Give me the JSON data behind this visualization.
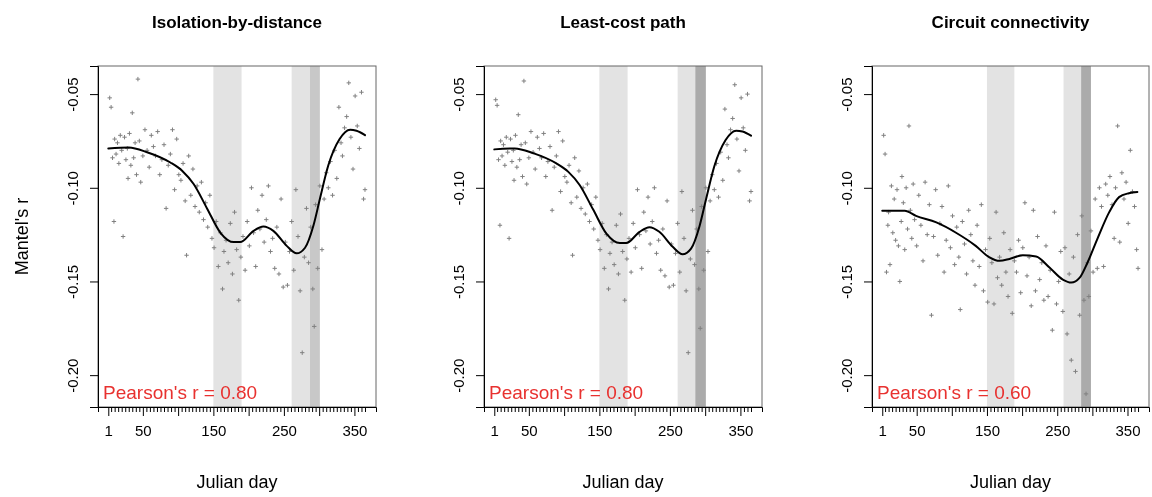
{
  "chart_data": [
    {
      "type": "scatter",
      "title": "Isolation-by-distance",
      "xlabel": "Julian day",
      "ylabel": "Mantel's r",
      "marker": "cross",
      "annotations": [
        "Pearson's r = 0.80"
      ],
      "xlim": [
        -13.6,
        380.6
      ],
      "ylim": [
        -0.217,
        -0.035
      ],
      "xticks": [
        1,
        {
          "value": 5,
          "label": null
        },
        {
          "value": 10,
          "label": null
        },
        {
          "value": 15,
          "label": null
        },
        {
          "value": 20,
          "label": null
        },
        {
          "value": 25,
          "label": null
        },
        {
          "value": 30,
          "label": null
        },
        {
          "value": 35,
          "label": null
        },
        {
          "value": 40,
          "label": null
        },
        {
          "value": 45,
          "label": null
        },
        50,
        {
          "value": 55,
          "label": null
        },
        {
          "value": 60,
          "label": null
        },
        {
          "value": 65,
          "label": null
        },
        {
          "value": 70,
          "label": null
        },
        {
          "value": 75,
          "label": null
        },
        {
          "value": 80,
          "label": null
        },
        {
          "value": 85,
          "label": null
        },
        {
          "value": 90,
          "label": null
        },
        {
          "value": 95,
          "label": null
        },
        {
          "value": 100,
          "label": null
        },
        {
          "value": 105,
          "label": null
        },
        {
          "value": 110,
          "label": null
        },
        {
          "value": 115,
          "label": null
        },
        {
          "value": 120,
          "label": null
        },
        {
          "value": 125,
          "label": null
        },
        {
          "value": 130,
          "label": null
        },
        {
          "value": 135,
          "label": null
        },
        {
          "value": 140,
          "label": null
        },
        {
          "value": 145,
          "label": null
        },
        150,
        {
          "value": 155,
          "label": null
        },
        {
          "value": 160,
          "label": null
        },
        {
          "value": 165,
          "label": null
        },
        {
          "value": 170,
          "label": null
        },
        {
          "value": 175,
          "label": null
        },
        {
          "value": 180,
          "label": null
        },
        {
          "value": 185,
          "label": null
        },
        {
          "value": 190,
          "label": null
        },
        {
          "value": 195,
          "label": null
        },
        {
          "value": 200,
          "label": null
        },
        {
          "value": 205,
          "label": null
        },
        {
          "value": 210,
          "label": null
        },
        {
          "value": 215,
          "label": null
        },
        {
          "value": 220,
          "label": null
        },
        {
          "value": 225,
          "label": null
        },
        {
          "value": 230,
          "label": null
        },
        {
          "value": 235,
          "label": null
        },
        {
          "value": 240,
          "label": null
        },
        {
          "value": 245,
          "label": null
        },
        250,
        {
          "value": 255,
          "label": null
        },
        {
          "value": 260,
          "label": null
        },
        {
          "value": 265,
          "label": null
        },
        {
          "value": 270,
          "label": null
        },
        {
          "value": 275,
          "label": null
        },
        {
          "value": 280,
          "label": null
        },
        {
          "value": 285,
          "label": null
        },
        {
          "value": 290,
          "label": null
        },
        {
          "value": 295,
          "label": null
        },
        {
          "value": 300,
          "label": null
        },
        {
          "value": 305,
          "label": null
        },
        {
          "value": 310,
          "label": null
        },
        {
          "value": 315,
          "label": null
        },
        {
          "value": 320,
          "label": null
        },
        {
          "value": 325,
          "label": null
        },
        {
          "value": 330,
          "label": null
        },
        {
          "value": 335,
          "label": null
        },
        {
          "value": 340,
          "label": null
        },
        {
          "value": 345,
          "label": null
        },
        350,
        {
          "value": 355,
          "label": null
        },
        {
          "value": 360,
          "label": null
        },
        {
          "value": 365,
          "label": null
        }
      ],
      "yticks": [
        {
          "value": -0.2,
          "label": "-0.20"
        },
        {
          "value": -0.15,
          "label": "-0.15"
        },
        {
          "value": -0.1,
          "label": "-0.10"
        },
        {
          "value": -0.05,
          "label": "-0.05"
        }
      ],
      "bands": [
        {
          "axis": "x",
          "from": 150,
          "to": 190,
          "color": "#e3e3e3"
        },
        {
          "axis": "x",
          "from": 261,
          "to": 287,
          "color": "#e3e3e3"
        },
        {
          "axis": "x",
          "from": 287,
          "to": 301,
          "color": "#c8c8c8"
        }
      ],
      "series": [
        {
          "color": "#808080",
          "x": [
            3,
            5,
            7,
            9,
            10,
            12,
            14,
            16,
            18,
            20,
            22,
            24,
            26,
            28,
            29,
            31,
            33,
            35,
            37,
            39,
            41,
            43,
            45,
            47,
            50,
            53,
            56,
            59,
            62,
            65,
            68,
            71,
            74,
            77,
            80,
            83,
            86,
            89,
            92,
            95,
            98,
            101,
            104,
            107,
            110,
            112,
            115,
            118,
            121,
            124,
            127,
            130,
            133,
            136,
            139,
            142,
            145,
            148,
            151,
            154,
            157,
            160,
            163,
            165,
            168,
            171,
            174,
            177,
            180,
            183,
            186,
            189,
            192,
            195,
            198,
            201,
            204,
            207,
            210,
            213,
            216,
            219,
            222,
            225,
            228,
            231,
            234,
            237,
            240,
            243,
            246,
            249,
            252,
            255,
            258,
            261,
            264,
            267,
            270,
            273,
            276,
            279,
            282,
            285,
            288,
            291,
            293,
            295,
            298,
            301,
            304,
            307,
            310,
            313,
            316,
            319,
            322,
            325,
            328,
            331,
            333,
            336,
            339,
            342,
            345,
            348,
            351,
            354,
            357,
            360,
            363,
            365
          ],
          "values": [
            -0.052,
            -0.057,
            -0.084,
            -0.118,
            -0.074,
            -0.082,
            -0.076,
            -0.087,
            -0.072,
            -0.08,
            -0.126,
            -0.073,
            -0.085,
            -0.079,
            -0.095,
            -0.071,
            -0.088,
            -0.06,
            -0.084,
            -0.076,
            -0.093,
            -0.042,
            -0.075,
            -0.097,
            -0.083,
            -0.069,
            -0.08,
            -0.089,
            -0.072,
            -0.078,
            -0.083,
            -0.07,
            -0.093,
            -0.085,
            -0.077,
            -0.111,
            -0.088,
            -0.082,
            -0.069,
            -0.101,
            -0.074,
            -0.093,
            -0.096,
            -0.087,
            -0.107,
            -0.136,
            -0.083,
            -0.104,
            -0.09,
            -0.11,
            -0.099,
            -0.113,
            -0.097,
            -0.117,
            -0.108,
            -0.121,
            -0.104,
            -0.127,
            -0.132,
            -0.118,
            -0.142,
            -0.124,
            -0.154,
            -0.134,
            -0.128,
            -0.14,
            -0.119,
            -0.146,
            -0.113,
            -0.133,
            -0.16,
            -0.137,
            -0.126,
            -0.144,
            -0.118,
            -0.131,
            -0.1,
            -0.124,
            -0.142,
            -0.112,
            -0.122,
            -0.104,
            -0.129,
            -0.117,
            -0.099,
            -0.134,
            -0.127,
            -0.143,
            -0.121,
            -0.146,
            -0.106,
            -0.153,
            -0.129,
            -0.152,
            -0.134,
            -0.118,
            -0.144,
            -0.101,
            -0.126,
            -0.155,
            -0.188,
            -0.137,
            -0.111,
            -0.14,
            -0.121,
            -0.154,
            -0.174,
            -0.109,
            -0.143,
            -0.099,
            -0.133,
            -0.106,
            -0.092,
            -0.1,
            -0.086,
            -0.104,
            -0.08,
            -0.095,
            -0.057,
            -0.076,
            -0.083,
            -0.068,
            -0.062,
            -0.044,
            -0.073,
            -0.09,
            -0.051,
            -0.067,
            -0.079,
            -0.049,
            -0.106,
            -0.101
          ]
        },
        {
          "type": "line",
          "marker": "none",
          "color": "#000000",
          "x": [
            1,
            30,
            56,
            89,
            106,
            122,
            141,
            160,
            179,
            188,
            207,
            221,
            235,
            254,
            268,
            280,
            292,
            301,
            313,
            329,
            344,
            353,
            365
          ],
          "values": [
            -0.079,
            -0.0785,
            -0.081,
            -0.0865,
            -0.091,
            -0.098,
            -0.111,
            -0.124,
            -0.129,
            -0.129,
            -0.123,
            -0.1207,
            -0.123,
            -0.131,
            -0.135,
            -0.132,
            -0.12,
            -0.106,
            -0.088,
            -0.074,
            -0.069,
            -0.0696,
            -0.0719
          ]
        }
      ]
    },
    {
      "type": "scatter",
      "title": "Least-cost path",
      "xlabel": "Julian day",
      "marker": "cross",
      "annotations": [
        "Pearson's r = 0.80"
      ],
      "xlim": [
        -13.6,
        380.6
      ],
      "ylim": [
        -0.217,
        -0.035
      ],
      "xticks": [
        1,
        {
          "value": 5,
          "label": null
        },
        {
          "value": 10,
          "label": null
        },
        {
          "value": 15,
          "label": null
        },
        {
          "value": 20,
          "label": null
        },
        {
          "value": 25,
          "label": null
        },
        {
          "value": 30,
          "label": null
        },
        {
          "value": 35,
          "label": null
        },
        {
          "value": 40,
          "label": null
        },
        {
          "value": 45,
          "label": null
        },
        50,
        {
          "value": 55,
          "label": null
        },
        {
          "value": 60,
          "label": null
        },
        {
          "value": 65,
          "label": null
        },
        {
          "value": 70,
          "label": null
        },
        {
          "value": 75,
          "label": null
        },
        {
          "value": 80,
          "label": null
        },
        {
          "value": 85,
          "label": null
        },
        {
          "value": 90,
          "label": null
        },
        {
          "value": 95,
          "label": null
        },
        {
          "value": 100,
          "label": null
        },
        {
          "value": 105,
          "label": null
        },
        {
          "value": 110,
          "label": null
        },
        {
          "value": 115,
          "label": null
        },
        {
          "value": 120,
          "label": null
        },
        {
          "value": 125,
          "label": null
        },
        {
          "value": 130,
          "label": null
        },
        {
          "value": 135,
          "label": null
        },
        {
          "value": 140,
          "label": null
        },
        {
          "value": 145,
          "label": null
        },
        150,
        {
          "value": 155,
          "label": null
        },
        {
          "value": 160,
          "label": null
        },
        {
          "value": 165,
          "label": null
        },
        {
          "value": 170,
          "label": null
        },
        {
          "value": 175,
          "label": null
        },
        {
          "value": 180,
          "label": null
        },
        {
          "value": 185,
          "label": null
        },
        {
          "value": 190,
          "label": null
        },
        {
          "value": 195,
          "label": null
        },
        {
          "value": 200,
          "label": null
        },
        {
          "value": 205,
          "label": null
        },
        {
          "value": 210,
          "label": null
        },
        {
          "value": 215,
          "label": null
        },
        {
          "value": 220,
          "label": null
        },
        {
          "value": 225,
          "label": null
        },
        {
          "value": 230,
          "label": null
        },
        {
          "value": 235,
          "label": null
        },
        {
          "value": 240,
          "label": null
        },
        {
          "value": 245,
          "label": null
        },
        250,
        {
          "value": 255,
          "label": null
        },
        {
          "value": 260,
          "label": null
        },
        {
          "value": 265,
          "label": null
        },
        {
          "value": 270,
          "label": null
        },
        {
          "value": 275,
          "label": null
        },
        {
          "value": 280,
          "label": null
        },
        {
          "value": 285,
          "label": null
        },
        {
          "value": 290,
          "label": null
        },
        {
          "value": 295,
          "label": null
        },
        {
          "value": 300,
          "label": null
        },
        {
          "value": 305,
          "label": null
        },
        {
          "value": 310,
          "label": null
        },
        {
          "value": 315,
          "label": null
        },
        {
          "value": 320,
          "label": null
        },
        {
          "value": 325,
          "label": null
        },
        {
          "value": 330,
          "label": null
        },
        {
          "value": 335,
          "label": null
        },
        {
          "value": 340,
          "label": null
        },
        {
          "value": 345,
          "label": null
        },
        350,
        {
          "value": 355,
          "label": null
        },
        {
          "value": 360,
          "label": null
        },
        {
          "value": 365,
          "label": null
        }
      ],
      "yticks": [
        {
          "value": -0.2,
          "label": "-0.20"
        },
        {
          "value": -0.15,
          "label": "-0.15"
        },
        {
          "value": -0.1,
          "label": "-0.10"
        },
        {
          "value": -0.05,
          "label": "-0.05"
        }
      ],
      "bands": [
        {
          "axis": "x",
          "from": 150,
          "to": 190,
          "color": "#e3e3e3"
        },
        {
          "axis": "x",
          "from": 261,
          "to": 286,
          "color": "#e3e3e3"
        },
        {
          "axis": "x",
          "from": 286,
          "to": 301,
          "color": "#ababab"
        }
      ],
      "series": [
        {
          "color": "#808080",
          "x": [
            3,
            5,
            7,
            9,
            10,
            12,
            14,
            16,
            18,
            20,
            22,
            24,
            26,
            28,
            29,
            31,
            33,
            35,
            37,
            39,
            41,
            43,
            45,
            47,
            50,
            53,
            56,
            59,
            62,
            65,
            68,
            71,
            74,
            77,
            80,
            83,
            86,
            89,
            92,
            95,
            98,
            101,
            104,
            107,
            110,
            112,
            115,
            118,
            121,
            124,
            127,
            130,
            133,
            136,
            139,
            142,
            145,
            148,
            151,
            154,
            157,
            160,
            163,
            165,
            168,
            171,
            174,
            177,
            180,
            183,
            186,
            189,
            192,
            195,
            198,
            201,
            204,
            207,
            210,
            213,
            216,
            219,
            222,
            225,
            228,
            231,
            234,
            237,
            240,
            243,
            246,
            249,
            252,
            255,
            258,
            261,
            264,
            267,
            270,
            273,
            276,
            279,
            282,
            285,
            288,
            291,
            293,
            295,
            298,
            301,
            304,
            307,
            310,
            313,
            316,
            319,
            322,
            325,
            328,
            331,
            333,
            336,
            339,
            342,
            345,
            348,
            351,
            354,
            357,
            360,
            363,
            365
          ],
          "values": [
            -0.053,
            -0.056,
            -0.085,
            -0.12,
            -0.075,
            -0.083,
            -0.077,
            -0.088,
            -0.073,
            -0.081,
            -0.127,
            -0.074,
            -0.086,
            -0.08,
            -0.096,
            -0.072,
            -0.089,
            -0.061,
            -0.085,
            -0.077,
            -0.094,
            -0.043,
            -0.076,
            -0.098,
            -0.084,
            -0.07,
            -0.081,
            -0.09,
            -0.073,
            -0.079,
            -0.084,
            -0.071,
            -0.094,
            -0.086,
            -0.078,
            -0.112,
            -0.089,
            -0.083,
            -0.07,
            -0.102,
            -0.075,
            -0.094,
            -0.097,
            -0.088,
            -0.108,
            -0.136,
            -0.084,
            -0.105,
            -0.091,
            -0.111,
            -0.1,
            -0.114,
            -0.098,
            -0.118,
            -0.109,
            -0.122,
            -0.105,
            -0.128,
            -0.133,
            -0.119,
            -0.143,
            -0.125,
            -0.154,
            -0.135,
            -0.129,
            -0.141,
            -0.12,
            -0.146,
            -0.114,
            -0.134,
            -0.16,
            -0.138,
            -0.127,
            -0.145,
            -0.119,
            -0.132,
            -0.101,
            -0.125,
            -0.143,
            -0.113,
            -0.123,
            -0.105,
            -0.13,
            -0.118,
            -0.1,
            -0.135,
            -0.128,
            -0.144,
            -0.122,
            -0.147,
            -0.107,
            -0.153,
            -0.13,
            -0.152,
            -0.135,
            -0.119,
            -0.145,
            -0.102,
            -0.127,
            -0.155,
            -0.188,
            -0.138,
            -0.112,
            -0.141,
            -0.122,
            -0.154,
            -0.175,
            -0.11,
            -0.144,
            -0.1,
            -0.134,
            -0.107,
            -0.093,
            -0.101,
            -0.087,
            -0.105,
            -0.081,
            -0.096,
            -0.058,
            -0.077,
            -0.084,
            -0.069,
            -0.063,
            -0.045,
            -0.074,
            -0.091,
            -0.052,
            -0.068,
            -0.08,
            -0.05,
            -0.107,
            -0.102
          ]
        },
        {
          "type": "line",
          "marker": "none",
          "color": "#000000",
          "x": [
            1,
            30,
            56,
            89,
            106,
            122,
            141,
            160,
            179,
            188,
            207,
            221,
            235,
            254,
            268,
            280,
            292,
            301,
            313,
            329,
            344,
            353,
            365
          ],
          "values": [
            -0.0795,
            -0.079,
            -0.0815,
            -0.087,
            -0.0915,
            -0.0985,
            -0.1115,
            -0.1245,
            -0.1295,
            -0.1295,
            -0.1235,
            -0.121,
            -0.1235,
            -0.1315,
            -0.1355,
            -0.1325,
            -0.1205,
            -0.1065,
            -0.0885,
            -0.0745,
            -0.0695,
            -0.07,
            -0.0722
          ]
        }
      ]
    },
    {
      "type": "scatter",
      "title": "Circuit connectivity",
      "xlabel": "Julian day",
      "marker": "cross",
      "annotations": [
        "Pearson's r = 0.60"
      ],
      "xlim": [
        -13.6,
        380.6
      ],
      "ylim": [
        -0.217,
        -0.035
      ],
      "xticks": [
        1,
        {
          "value": 5,
          "label": null
        },
        {
          "value": 10,
          "label": null
        },
        {
          "value": 15,
          "label": null
        },
        {
          "value": 20,
          "label": null
        },
        {
          "value": 25,
          "label": null
        },
        {
          "value": 30,
          "label": null
        },
        {
          "value": 35,
          "label": null
        },
        {
          "value": 40,
          "label": null
        },
        {
          "value": 45,
          "label": null
        },
        50,
        {
          "value": 55,
          "label": null
        },
        {
          "value": 60,
          "label": null
        },
        {
          "value": 65,
          "label": null
        },
        {
          "value": 70,
          "label": null
        },
        {
          "value": 75,
          "label": null
        },
        {
          "value": 80,
          "label": null
        },
        {
          "value": 85,
          "label": null
        },
        {
          "value": 90,
          "label": null
        },
        {
          "value": 95,
          "label": null
        },
        {
          "value": 100,
          "label": null
        },
        {
          "value": 105,
          "label": null
        },
        {
          "value": 110,
          "label": null
        },
        {
          "value": 115,
          "label": null
        },
        {
          "value": 120,
          "label": null
        },
        {
          "value": 125,
          "label": null
        },
        {
          "value": 130,
          "label": null
        },
        {
          "value": 135,
          "label": null
        },
        {
          "value": 140,
          "label": null
        },
        {
          "value": 145,
          "label": null
        },
        150,
        {
          "value": 155,
          "label": null
        },
        {
          "value": 160,
          "label": null
        },
        {
          "value": 165,
          "label": null
        },
        {
          "value": 170,
          "label": null
        },
        {
          "value": 175,
          "label": null
        },
        {
          "value": 180,
          "label": null
        },
        {
          "value": 185,
          "label": null
        },
        {
          "value": 190,
          "label": null
        },
        {
          "value": 195,
          "label": null
        },
        {
          "value": 200,
          "label": null
        },
        {
          "value": 205,
          "label": null
        },
        {
          "value": 210,
          "label": null
        },
        {
          "value": 215,
          "label": null
        },
        {
          "value": 220,
          "label": null
        },
        {
          "value": 225,
          "label": null
        },
        {
          "value": 230,
          "label": null
        },
        {
          "value": 235,
          "label": null
        },
        {
          "value": 240,
          "label": null
        },
        {
          "value": 245,
          "label": null
        },
        250,
        {
          "value": 255,
          "label": null
        },
        {
          "value": 260,
          "label": null
        },
        {
          "value": 265,
          "label": null
        },
        {
          "value": 270,
          "label": null
        },
        {
          "value": 275,
          "label": null
        },
        {
          "value": 280,
          "label": null
        },
        {
          "value": 285,
          "label": null
        },
        {
          "value": 290,
          "label": null
        },
        {
          "value": 295,
          "label": null
        },
        {
          "value": 300,
          "label": null
        },
        {
          "value": 305,
          "label": null
        },
        {
          "value": 310,
          "label": null
        },
        {
          "value": 315,
          "label": null
        },
        {
          "value": 320,
          "label": null
        },
        {
          "value": 325,
          "label": null
        },
        {
          "value": 330,
          "label": null
        },
        {
          "value": 335,
          "label": null
        },
        {
          "value": 340,
          "label": null
        },
        {
          "value": 345,
          "label": null
        },
        350,
        {
          "value": 355,
          "label": null
        },
        {
          "value": 360,
          "label": null
        },
        {
          "value": 365,
          "label": null
        }
      ],
      "yticks": [
        {
          "value": -0.2,
          "label": "-0.20"
        },
        {
          "value": -0.15,
          "label": "-0.15"
        },
        {
          "value": -0.1,
          "label": "-0.10"
        },
        {
          "value": -0.05,
          "label": "-0.05"
        }
      ],
      "bands": [
        {
          "axis": "x",
          "from": 150,
          "to": 189,
          "color": "#e3e3e3"
        },
        {
          "axis": "x",
          "from": 259,
          "to": 284,
          "color": "#e3e3e3"
        },
        {
          "axis": "x",
          "from": 284,
          "to": 298,
          "color": "#ababab"
        }
      ],
      "series": [
        {
          "color": "#808080",
          "x": [
            3,
            5,
            7,
            9,
            10,
            12,
            14,
            16,
            18,
            20,
            22,
            24,
            26,
            28,
            29,
            31,
            33,
            35,
            37,
            39,
            41,
            43,
            45,
            47,
            50,
            53,
            56,
            59,
            62,
            65,
            68,
            71,
            74,
            77,
            80,
            83,
            86,
            89,
            92,
            95,
            98,
            101,
            104,
            107,
            110,
            112,
            115,
            118,
            121,
            124,
            127,
            130,
            133,
            136,
            139,
            142,
            145,
            148,
            151,
            154,
            157,
            160,
            163,
            165,
            168,
            171,
            174,
            177,
            180,
            183,
            186,
            189,
            192,
            195,
            198,
            201,
            204,
            207,
            210,
            213,
            216,
            219,
            222,
            225,
            228,
            231,
            234,
            237,
            240,
            243,
            246,
            249,
            252,
            255,
            258,
            261,
            264,
            267,
            270,
            273,
            276,
            279,
            282,
            285,
            288,
            291,
            293,
            295,
            298,
            301,
            304,
            307,
            310,
            313,
            316,
            319,
            322,
            325,
            328,
            331,
            333,
            336,
            339,
            342,
            345,
            348,
            351,
            354,
            357,
            360,
            363,
            365
          ],
          "values": [
            -0.072,
            -0.082,
            -0.145,
            -0.12,
            -0.113,
            -0.141,
            -0.099,
            -0.124,
            -0.106,
            -0.128,
            -0.101,
            -0.131,
            -0.15,
            -0.118,
            -0.094,
            -0.108,
            -0.133,
            -0.1,
            -0.122,
            -0.067,
            -0.112,
            -0.127,
            -0.098,
            -0.117,
            -0.131,
            -0.104,
            -0.12,
            -0.139,
            -0.097,
            -0.125,
            -0.109,
            -0.168,
            -0.126,
            -0.101,
            -0.136,
            -0.119,
            -0.11,
            -0.145,
            -0.128,
            -0.099,
            -0.132,
            -0.115,
            -0.141,
            -0.121,
            -0.137,
            -0.165,
            -0.118,
            -0.13,
            -0.146,
            -0.112,
            -0.125,
            -0.139,
            -0.152,
            -0.12,
            -0.142,
            -0.109,
            -0.155,
            -0.133,
            -0.161,
            -0.127,
            -0.14,
            -0.162,
            -0.113,
            -0.148,
            -0.137,
            -0.152,
            -0.124,
            -0.145,
            -0.158,
            -0.133,
            -0.167,
            -0.139,
            -0.145,
            -0.128,
            -0.156,
            -0.132,
            -0.108,
            -0.147,
            -0.137,
            -0.163,
            -0.112,
            -0.155,
            -0.126,
            -0.149,
            -0.14,
            -0.16,
            -0.131,
            -0.158,
            -0.144,
            -0.176,
            -0.113,
            -0.162,
            -0.15,
            -0.134,
            -0.166,
            -0.132,
            -0.178,
            -0.146,
            -0.192,
            -0.137,
            -0.198,
            -0.125,
            -0.168,
            -0.115,
            -0.16,
            -0.21,
            -0.14,
            -0.158,
            -0.123,
            -0.145,
            -0.106,
            -0.143,
            -0.1,
            -0.11,
            -0.142,
            -0.098,
            -0.104,
            -0.094,
            -0.109,
            -0.127,
            -0.1,
            -0.067,
            -0.129,
            -0.092,
            -0.106,
            -0.097,
            -0.119,
            -0.08,
            -0.102,
            -0.11,
            -0.133,
            -0.143
          ]
        },
        {
          "type": "line",
          "marker": "none",
          "color": "#000000",
          "x": [
            1,
            33,
            49,
            78,
            106,
            134,
            153,
            168,
            182,
            201,
            220,
            239,
            258,
            270,
            282,
            293,
            307,
            324,
            338,
            352,
            364
          ],
          "values": [
            -0.1123,
            -0.1123,
            -0.115,
            -0.1185,
            -0.124,
            -0.131,
            -0.137,
            -0.139,
            -0.138,
            -0.136,
            -0.1367,
            -0.1426,
            -0.149,
            -0.1506,
            -0.148,
            -0.14,
            -0.1274,
            -0.113,
            -0.105,
            -0.1029,
            -0.1022
          ]
        }
      ]
    }
  ]
}
